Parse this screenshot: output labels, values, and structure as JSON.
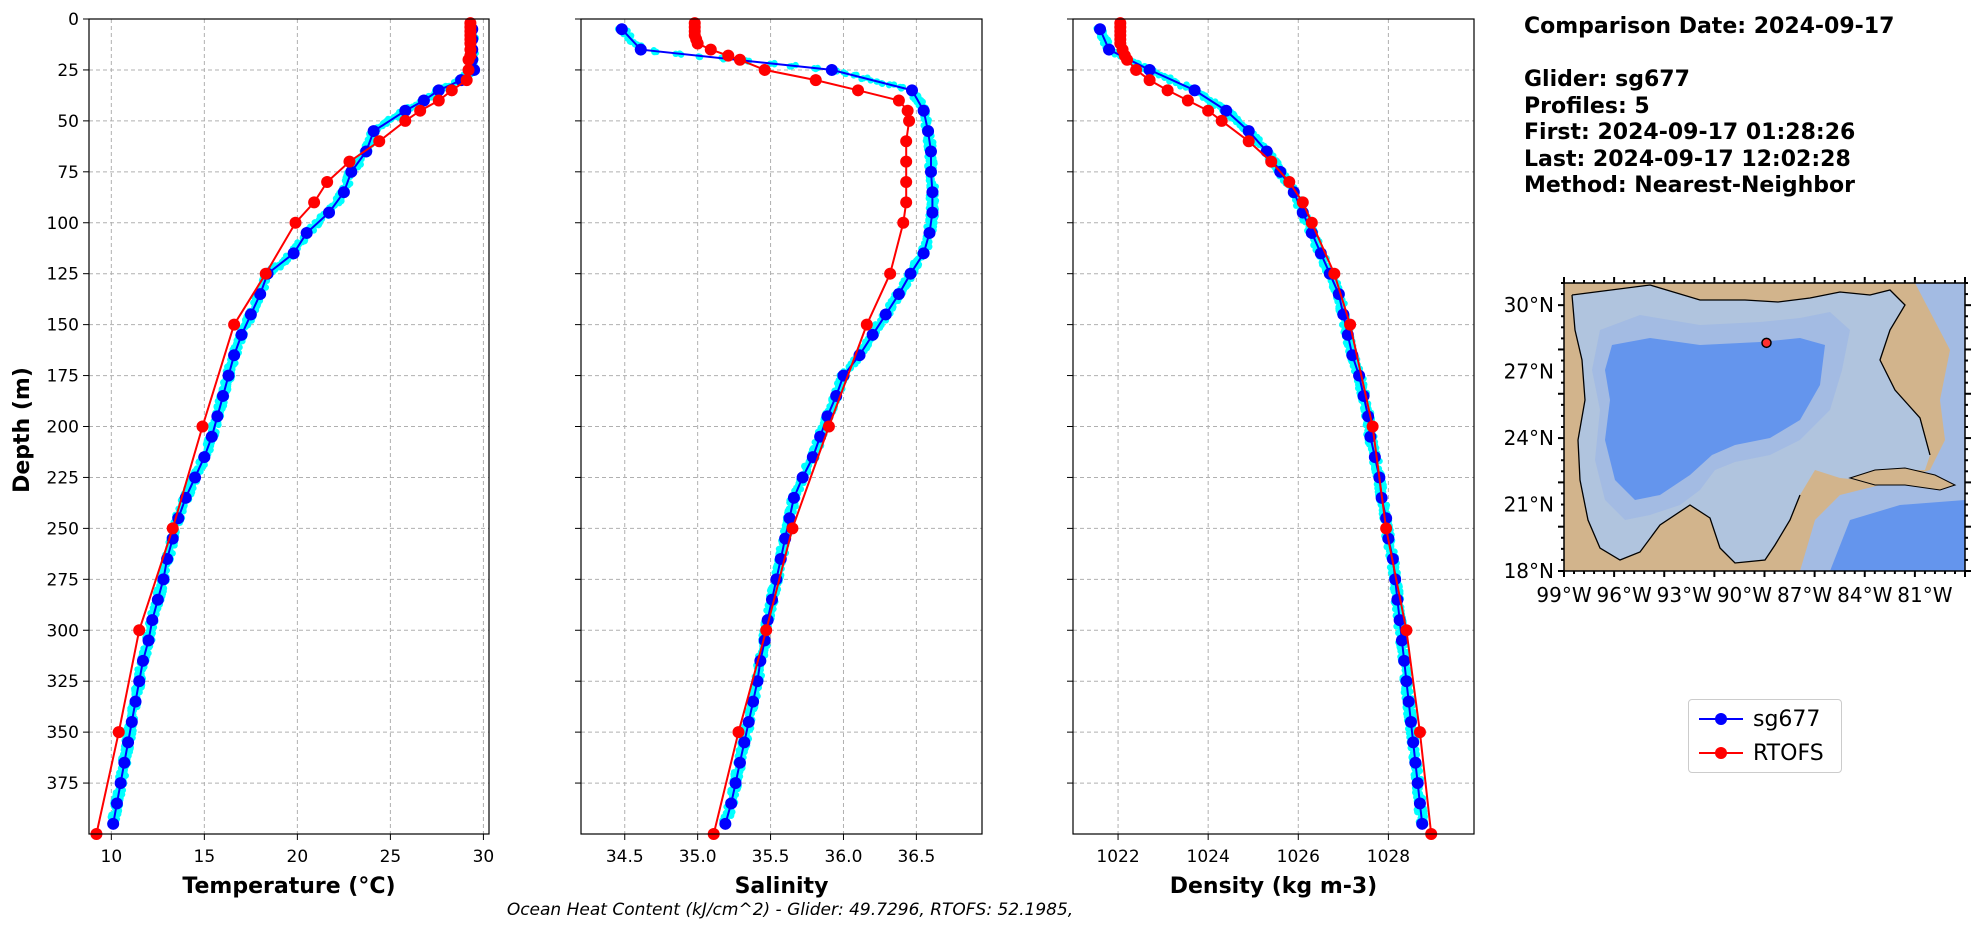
{
  "info": {
    "comparison": "Comparison Date: 2024-09-17",
    "glider": "Glider: sg677",
    "profiles": "Profiles: 5",
    "first": "First: 2024-09-17 01:28:26",
    "last": "Last: 2024-09-17 12:02:28",
    "method": "Method: Nearest-Neighbor"
  },
  "footer": "Ocean Heat Content (kJ/cm^2) - Glider: 49.7296,  RTOFS: 52.1985,",
  "legend": [
    {
      "name": "sg677",
      "color": "#0000ff"
    },
    {
      "name": "RTOFS",
      "color": "#ff0000"
    }
  ],
  "colors": {
    "raw": "#00ffff",
    "glider": "#0000ff",
    "rtofs": "#ff0000",
    "grid": "#b0b0b0"
  },
  "chart_data": [
    {
      "type": "line",
      "xlabel": "Temperature (°C)",
      "ylabel": "Depth (m)",
      "xlim": [
        8.8,
        30.3
      ],
      "ylim": [
        400,
        0
      ],
      "xticks": [
        10,
        15,
        20,
        25,
        30
      ],
      "yticks": [
        0,
        25,
        50,
        75,
        100,
        125,
        150,
        175,
        200,
        225,
        250,
        275,
        300,
        325,
        350,
        375
      ],
      "series": [
        {
          "name": "sg677",
          "color": "#0000ff",
          "depth": [
            5,
            10,
            15,
            20,
            25,
            30,
            35,
            40,
            45,
            55,
            65,
            75,
            85,
            95,
            105,
            115,
            125,
            135,
            145,
            155,
            165,
            175,
            185,
            195,
            205,
            215,
            225,
            235,
            245,
            255,
            265,
            275,
            285,
            295,
            305,
            315,
            325,
            335,
            345,
            355,
            365,
            375,
            385,
            395
          ],
          "values": [
            29.4,
            29.4,
            29.4,
            29.4,
            29.5,
            28.8,
            27.6,
            26.8,
            25.8,
            24.1,
            23.7,
            22.9,
            22.5,
            21.7,
            20.5,
            19.8,
            18.4,
            18.0,
            17.5,
            17.0,
            16.6,
            16.3,
            16.0,
            15.7,
            15.4,
            15.0,
            14.5,
            14.0,
            13.6,
            13.3,
            13.0,
            12.8,
            12.5,
            12.2,
            12.0,
            11.7,
            11.5,
            11.3,
            11.1,
            10.9,
            10.7,
            10.5,
            10.3,
            10.1
          ]
        },
        {
          "name": "RTOFS",
          "color": "#ff0000",
          "depth": [
            2,
            4,
            6,
            8,
            10,
            12,
            15,
            18,
            20,
            25,
            30,
            35,
            40,
            45,
            50,
            60,
            70,
            80,
            90,
            100,
            125,
            150,
            200,
            250,
            300,
            350,
            400
          ],
          "values": [
            29.3,
            29.3,
            29.3,
            29.3,
            29.3,
            29.3,
            29.3,
            29.3,
            29.2,
            29.2,
            29.1,
            28.3,
            27.6,
            26.6,
            25.8,
            24.4,
            22.8,
            21.6,
            20.9,
            19.9,
            18.3,
            16.6,
            14.9,
            13.3,
            11.5,
            10.4,
            9.2
          ]
        }
      ]
    },
    {
      "type": "line",
      "xlabel": "Salinity",
      "ylabel": "",
      "xlim": [
        34.2,
        36.95
      ],
      "ylim": [
        400,
        0
      ],
      "xticks": [
        34.5,
        35.0,
        35.5,
        36.0,
        36.5
      ],
      "series": [
        {
          "name": "sg677",
          "color": "#0000ff",
          "depth": [
            5,
            15,
            25,
            35,
            45,
            55,
            65,
            75,
            85,
            95,
            105,
            115,
            125,
            135,
            145,
            155,
            165,
            175,
            185,
            195,
            205,
            215,
            225,
            235,
            245,
            255,
            265,
            275,
            285,
            295,
            305,
            315,
            325,
            335,
            345,
            355,
            365,
            375,
            385,
            395
          ],
          "values": [
            34.48,
            34.61,
            35.92,
            36.47,
            36.55,
            36.58,
            36.6,
            36.6,
            36.61,
            36.61,
            36.59,
            36.55,
            36.46,
            36.38,
            36.29,
            36.2,
            36.11,
            36.0,
            35.95,
            35.89,
            35.84,
            35.79,
            35.72,
            35.66,
            35.63,
            35.6,
            35.57,
            35.54,
            35.51,
            35.48,
            35.46,
            35.43,
            35.41,
            35.38,
            35.35,
            35.32,
            35.29,
            35.26,
            35.23,
            35.19
          ]
        },
        {
          "name": "RTOFS",
          "color": "#ff0000",
          "depth": [
            2,
            4,
            6,
            8,
            10,
            12,
            15,
            18,
            20,
            25,
            30,
            35,
            40,
            45,
            50,
            60,
            70,
            80,
            90,
            100,
            125,
            150,
            200,
            250,
            300,
            350,
            400
          ],
          "values": [
            34.98,
            34.98,
            34.98,
            34.98,
            34.99,
            35.0,
            35.09,
            35.21,
            35.29,
            35.46,
            35.81,
            36.1,
            36.38,
            36.44,
            36.45,
            36.43,
            36.43,
            36.43,
            36.43,
            36.41,
            36.32,
            36.16,
            35.9,
            35.65,
            35.47,
            35.28,
            35.11
          ]
        }
      ]
    },
    {
      "type": "line",
      "xlabel": "Density (kg m-3)",
      "ylabel": "",
      "xlim": [
        1021.0,
        1029.9
      ],
      "ylim": [
        400,
        0
      ],
      "xticks": [
        1022,
        1024,
        1026,
        1028
      ],
      "series": [
        {
          "name": "sg677",
          "color": "#0000ff",
          "depth": [
            5,
            15,
            25,
            35,
            45,
            55,
            65,
            75,
            85,
            95,
            105,
            115,
            125,
            135,
            145,
            155,
            165,
            175,
            185,
            195,
            205,
            215,
            225,
            235,
            245,
            255,
            265,
            275,
            285,
            295,
            305,
            315,
            325,
            335,
            345,
            355,
            365,
            375,
            385,
            395
          ],
          "values": [
            1021.6,
            1021.8,
            1022.7,
            1023.7,
            1024.4,
            1024.9,
            1025.3,
            1025.6,
            1025.9,
            1026.1,
            1026.3,
            1026.5,
            1026.7,
            1026.9,
            1027.0,
            1027.1,
            1027.2,
            1027.35,
            1027.45,
            1027.55,
            1027.6,
            1027.7,
            1027.8,
            1027.85,
            1027.95,
            1028.0,
            1028.1,
            1028.15,
            1028.2,
            1028.25,
            1028.3,
            1028.35,
            1028.4,
            1028.45,
            1028.5,
            1028.55,
            1028.6,
            1028.65,
            1028.7,
            1028.75
          ]
        },
        {
          "name": "RTOFS",
          "color": "#ff0000",
          "depth": [
            2,
            4,
            6,
            8,
            10,
            12,
            15,
            18,
            20,
            25,
            30,
            35,
            40,
            45,
            50,
            60,
            70,
            80,
            90,
            100,
            125,
            150,
            200,
            250,
            300,
            350,
            400
          ],
          "values": [
            1022.05,
            1022.05,
            1022.05,
            1022.05,
            1022.05,
            1022.05,
            1022.1,
            1022.15,
            1022.2,
            1022.4,
            1022.7,
            1023.1,
            1023.55,
            1024.0,
            1024.3,
            1024.9,
            1025.4,
            1025.8,
            1026.1,
            1026.3,
            1026.8,
            1027.15,
            1027.65,
            1027.95,
            1028.4,
            1028.7,
            1028.95
          ]
        }
      ]
    }
  ],
  "map": {
    "lat_labels": [
      "30°N",
      "27°N",
      "24°N",
      "21°N",
      "18°N"
    ],
    "lon_labels": [
      "99°W",
      "96°W",
      "93°W",
      "90°W",
      "87°W",
      "84°W",
      "81°W"
    ],
    "lon_range": [
      -99,
      -79
    ],
    "lat_range": [
      18,
      31
    ],
    "glider_position": {
      "lon": -88.9,
      "lat": 28.3
    },
    "colors": {
      "land": "#d2b48c",
      "shelf": "#b0c4de",
      "mid": "#a3bbe3",
      "deep": "#6495ed",
      "marker": "#ff3030"
    }
  }
}
